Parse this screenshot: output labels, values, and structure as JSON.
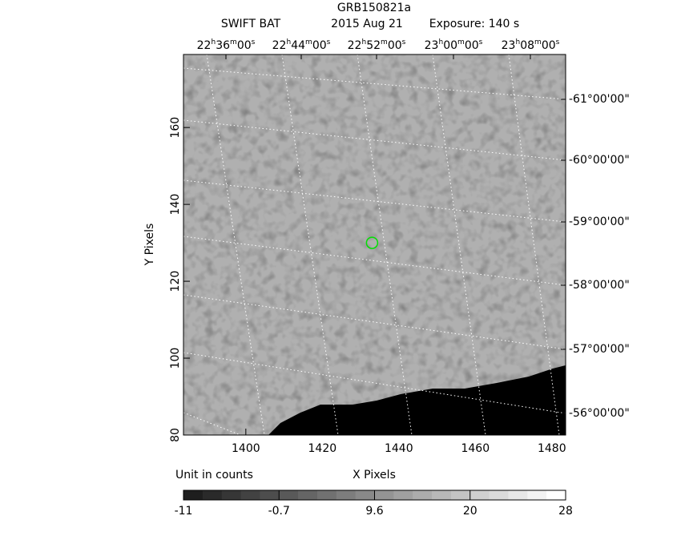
{
  "chart_data": {
    "type": "image",
    "title": "GRB150821a",
    "subtitle": [
      "SWIFT BAT",
      "2015 Aug 21",
      "Exposure: 140 s"
    ],
    "xlabel": "X Pixels",
    "ylabel": "Y Pixels",
    "xlim": [
      1383.7,
      1483.6
    ],
    "ylim": [
      80,
      179
    ],
    "xticks": [
      1400,
      1420,
      1440,
      1460,
      1480
    ],
    "yticks": [
      80,
      100,
      120,
      140,
      160
    ],
    "top_ticks": [
      "22h36m00s",
      "22h44m00s",
      "22h52m00s",
      "23h00m00s",
      "23h08m00s"
    ],
    "right_ticks": [
      "-61°00'00\"",
      "-60°00'00\"",
      "-59°00'00\"",
      "-58°00'00\"",
      "-57°00'00\"",
      "-56°00'00\""
    ],
    "source": {
      "x": 1433,
      "y": 130,
      "color": "#00e000"
    },
    "colorbar": {
      "label": "Unit in counts",
      "ticks": [
        -11,
        -0.7,
        9.6,
        20,
        28
      ]
    }
  }
}
